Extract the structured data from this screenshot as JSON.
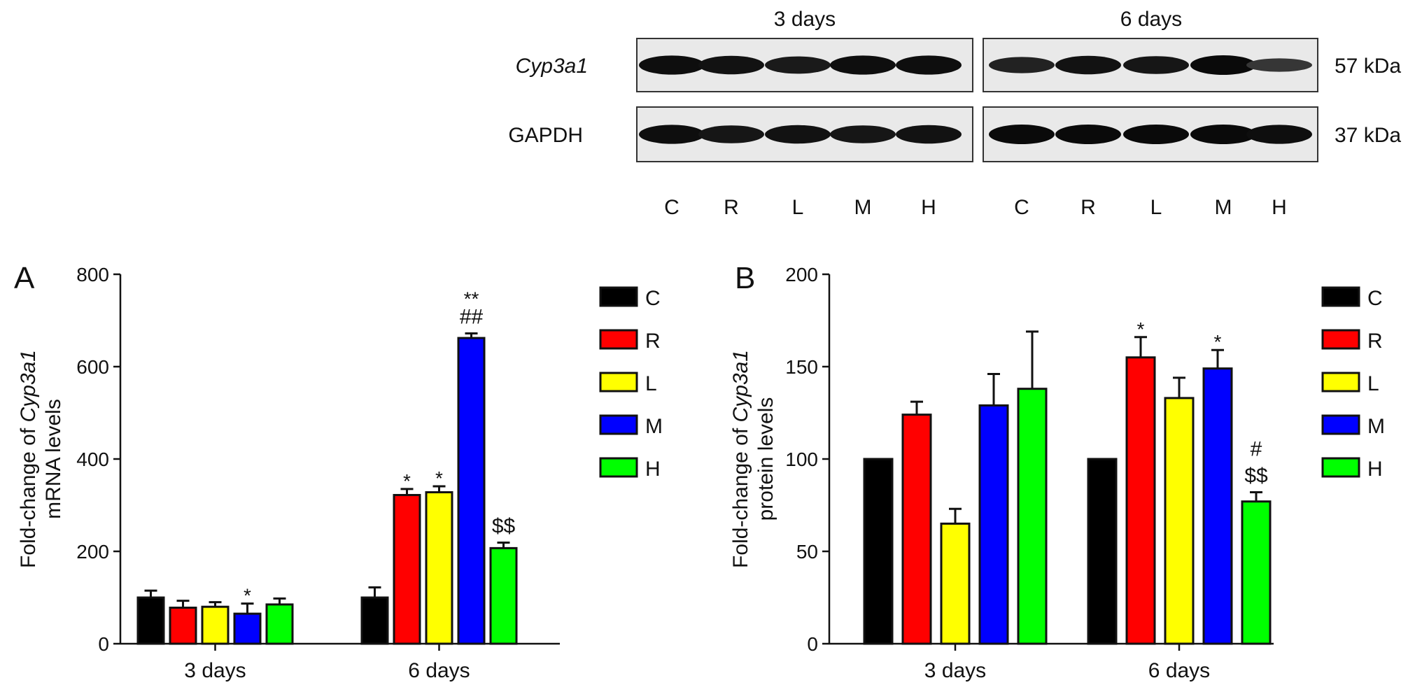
{
  "blot": {
    "groups": [
      "3 days",
      "6 days"
    ],
    "lanes": [
      "C",
      "R",
      "L",
      "M",
      "H"
    ],
    "rows": [
      {
        "name": "Cyp3a1",
        "kda": "57 kDa",
        "intensity": [
          [
            0.95,
            0.9,
            0.8,
            0.95,
            0.95
          ],
          [
            0.7,
            0.9,
            0.85,
            1.0,
            0.45
          ]
        ]
      },
      {
        "name": "GAPDH",
        "kda": "37 kDa",
        "intensity": [
          [
            0.95,
            0.85,
            0.9,
            0.85,
            0.9
          ],
          [
            1.0,
            1.0,
            1.0,
            1.0,
            0.95
          ]
        ]
      }
    ]
  },
  "colors": {
    "C": "#000000",
    "R": "#ff0000",
    "L": "#ffff00",
    "M": "#0000ff",
    "H": "#00ff00"
  },
  "chart_data": [
    {
      "panel": "A",
      "type": "bar",
      "categories": [
        "3 days",
        "6 days"
      ],
      "ylabel_pre": "Fold-change of ",
      "ylabel_gene": "Cyp3a1",
      "ylabel_line2": "mRNA levels",
      "ylim": [
        0,
        800
      ],
      "yticks": [
        0,
        200,
        400,
        600,
        800
      ],
      "series": [
        {
          "name": "C",
          "values": [
            100,
            100
          ],
          "errors": [
            15,
            22
          ],
          "annotations": [
            "",
            ""
          ]
        },
        {
          "name": "R",
          "values": [
            78,
            322
          ],
          "errors": [
            15,
            13
          ],
          "annotations": [
            "",
            "*"
          ]
        },
        {
          "name": "L",
          "values": [
            80,
            328
          ],
          "errors": [
            10,
            13
          ],
          "annotations": [
            "",
            "*"
          ]
        },
        {
          "name": "M",
          "values": [
            65,
            662
          ],
          "errors": [
            22,
            10
          ],
          "annotations": [
            "*",
            "**|##"
          ]
        },
        {
          "name": "H",
          "values": [
            85,
            207
          ],
          "errors": [
            13,
            12
          ],
          "annotations": [
            "",
            "$$"
          ]
        }
      ]
    },
    {
      "panel": "B",
      "type": "bar",
      "categories": [
        "3 days",
        "6 days"
      ],
      "ylabel_pre": "Fold-change of ",
      "ylabel_gene": "Cyp3a1",
      "ylabel_line2": "protein levels",
      "ylim": [
        0,
        200
      ],
      "yticks": [
        0,
        50,
        100,
        150,
        200
      ],
      "series": [
        {
          "name": "C",
          "values": [
            100,
            100
          ],
          "errors": [
            0,
            0
          ],
          "annotations": [
            "",
            ""
          ]
        },
        {
          "name": "R",
          "values": [
            124,
            155
          ],
          "errors": [
            7,
            11
          ],
          "annotations": [
            "",
            "*"
          ]
        },
        {
          "name": "L",
          "values": [
            65,
            133
          ],
          "errors": [
            8,
            11
          ],
          "annotations": [
            "",
            ""
          ]
        },
        {
          "name": "M",
          "values": [
            129,
            149
          ],
          "errors": [
            17,
            10
          ],
          "annotations": [
            "",
            "*"
          ]
        },
        {
          "name": "H",
          "values": [
            138,
            77
          ],
          "errors": [
            31,
            5
          ],
          "annotations": [
            "",
            "#|$$"
          ]
        }
      ]
    }
  ]
}
